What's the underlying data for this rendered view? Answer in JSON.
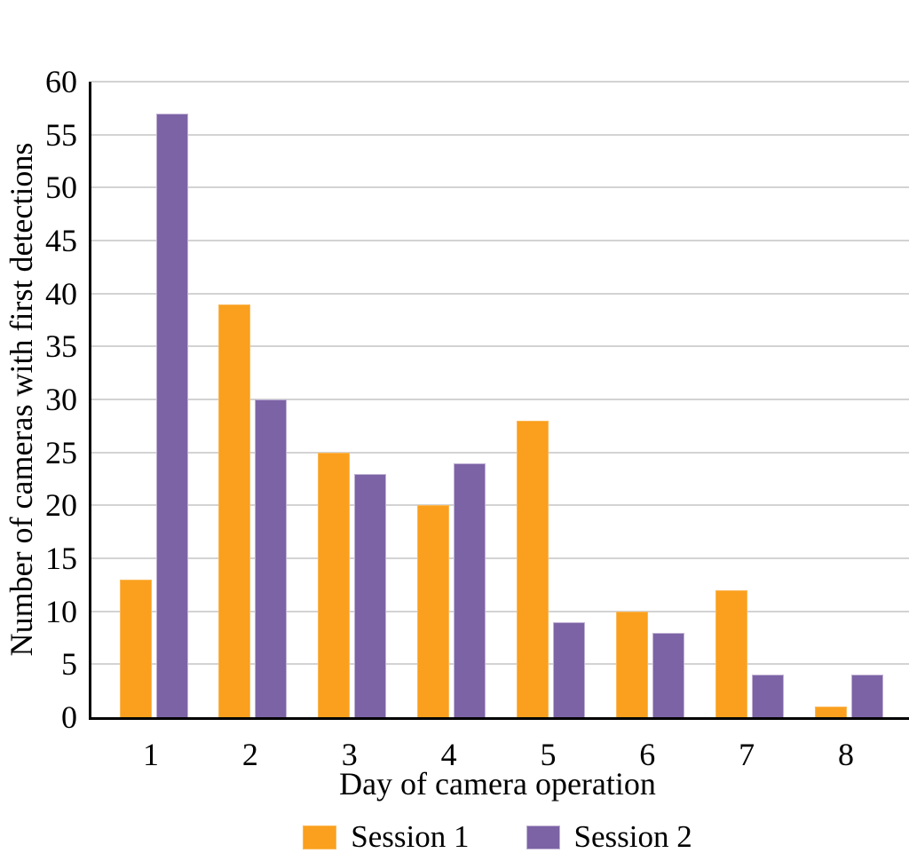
{
  "chart_data": {
    "type": "bar",
    "title": "",
    "categories": [
      "1",
      "2",
      "3",
      "4",
      "5",
      "6",
      "7",
      "8"
    ],
    "series": [
      {
        "name": "Session 1",
        "color": "#FAA01E",
        "border_color": "#FBB857",
        "values": [
          13,
          39,
          25,
          20,
          28,
          10,
          12,
          1
        ]
      },
      {
        "name": "Session 2",
        "color": "#7C63A5",
        "border_color": "#C0B1D4",
        "values": [
          57,
          30,
          23,
          24,
          9,
          8,
          4,
          4
        ]
      }
    ],
    "xlabel": "Day of camera operation",
    "ylabel": "Number of cameras with first detections",
    "ylim": [
      0,
      60
    ],
    "y_tick_step": 5,
    "y_tick_labels": [
      "0",
      "5",
      "10",
      "15",
      "20",
      "25",
      "30",
      "35",
      "40",
      "45",
      "50",
      "55",
      "60"
    ],
    "grid": true,
    "gridline_color": "#D3D3D3",
    "axis_color": "#000000",
    "legend_position": "bottom"
  }
}
